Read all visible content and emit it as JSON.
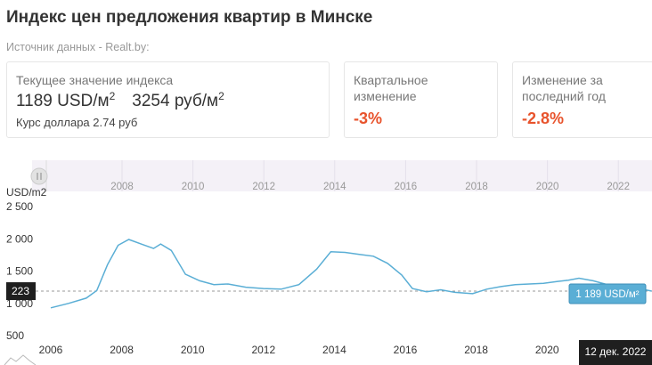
{
  "header": {
    "title": "Индекс цен предложения квартир в Минске",
    "source": "Источник данных - Realt.by:"
  },
  "cards": {
    "current": {
      "label": "Текущее значение индекса",
      "usd_value": "1189 USD/м",
      "rub_value": "3254 руб/м",
      "superscript": "2",
      "rate": "Курс доллара 2.74 руб"
    },
    "quarterly": {
      "label": "Квартальное изменение",
      "value": "-3%"
    },
    "yearly": {
      "label": "Изменение за последний год",
      "value": "-2.8%"
    }
  },
  "colors": {
    "line": "#5aaed5",
    "negative": "#e8532c",
    "navigator_bg": "#f4f1f7",
    "tooltip_bg": "#5aaed5"
  },
  "chart_data": {
    "type": "line",
    "ylabel": "USD/m2",
    "y_ticks": [
      "2 500",
      "2 000",
      "1 500",
      "1 000",
      "500"
    ],
    "ylim": [
      500,
      2500
    ],
    "x_ticks": [
      "2006",
      "2008",
      "2010",
      "2012",
      "2014",
      "2016",
      "2018",
      "2020"
    ],
    "navigator_ticks": [
      "2008",
      "2010",
      "2012",
      "2014",
      "2016",
      "2018",
      "2020",
      "2022"
    ],
    "xlim": [
      2006,
      2023
    ],
    "crosshair_value": "223",
    "last_value_label": "1 189 USD/м²",
    "date_label": "12 дек. 2022",
    "series": [
      {
        "x": [
          2006.0,
          2006.5,
          2007.0,
          2007.3,
          2007.6,
          2007.9,
          2008.2,
          2008.6,
          2008.9,
          2009.1,
          2009.4,
          2009.8,
          2010.2,
          2010.6,
          2011.0,
          2011.5,
          2012.0,
          2012.5,
          2013.0,
          2013.5,
          2013.9,
          2014.3,
          2014.7,
          2015.1,
          2015.5,
          2015.9,
          2016.2,
          2016.6,
          2017.0,
          2017.4,
          2017.9,
          2018.3,
          2018.7,
          2019.1,
          2019.5,
          2019.9,
          2020.3,
          2020.6,
          2020.9,
          2021.3,
          2021.7,
          2022.1,
          2022.5,
          2022.95
        ],
        "values": [
          930,
          1000,
          1080,
          1200,
          1600,
          1900,
          1990,
          1910,
          1850,
          1920,
          1820,
          1450,
          1350,
          1290,
          1300,
          1250,
          1230,
          1220,
          1290,
          1530,
          1800,
          1790,
          1760,
          1730,
          1620,
          1440,
          1230,
          1180,
          1210,
          1170,
          1150,
          1220,
          1260,
          1290,
          1300,
          1310,
          1340,
          1360,
          1390,
          1350,
          1290,
          1270,
          1240,
          1189
        ]
      }
    ]
  }
}
